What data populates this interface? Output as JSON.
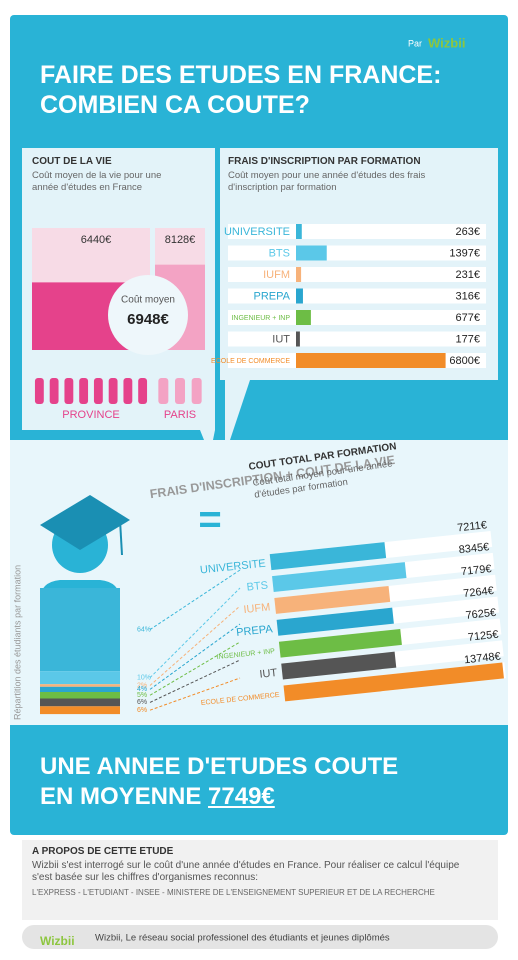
{
  "header": {
    "by": "Par",
    "brand": "Wizbii",
    "title_line1": "FAIRE DES ETUDES EN FRANCE:",
    "title_line2": "COMBIEN CA COUTE?"
  },
  "cost_of_living": {
    "title": "COUT DE LA VIE",
    "subtitle": "Coût moyen de la vie pour une année d'études en France",
    "regions": [
      {
        "name": "PROVINCE",
        "value": 6440,
        "label": "6440€"
      },
      {
        "name": "PARIS",
        "value": 8128,
        "label": "8128€"
      }
    ],
    "average": {
      "caption": "Coût moyen",
      "value": 6948,
      "label": "6948€"
    }
  },
  "tuition": {
    "title": "FRAIS D'INSCRIPTION PAR FORMATION",
    "subtitle": "Coût moyen pour une année d'études des frais d'inscription par formation",
    "items": [
      {
        "name": "UNIVERSITE",
        "value": 263,
        "label": "263€",
        "color": "#3ab6d9"
      },
      {
        "name": "BTS",
        "value": 1397,
        "label": "1397€",
        "color": "#5bc8e8"
      },
      {
        "name": "IUFM",
        "value": 231,
        "label": "231€",
        "color": "#f7b27a"
      },
      {
        "name": "PREPA",
        "value": 316,
        "label": "316€",
        "color": "#2aa6cf"
      },
      {
        "name": "INGENIEUR + INP",
        "value": 677,
        "label": "677€",
        "color": "#6dbd45"
      },
      {
        "name": "IUT",
        "value": 177,
        "label": "177€",
        "color": "#555555"
      },
      {
        "name": "ECOLE DE COMMERCE",
        "value": 6800,
        "label": "6800€",
        "color": "#f28c28"
      }
    ]
  },
  "combined": {
    "heading": "FRAIS D'INSCRIPTION + COUT DE LA VIE",
    "equals": "=",
    "title": "COUT TOTAL PAR FORMATION",
    "subtitle": "Coût total moyen pour une année d'études par formation",
    "axis_label": "Répartition des étudiants par formation",
    "items": [
      {
        "name": "UNIVERSITE",
        "value": 7211,
        "label": "7211€",
        "share": 64,
        "share_label": "64%"
      },
      {
        "name": "BTS",
        "value": 8345,
        "label": "8345€",
        "share": 10,
        "share_label": "10%"
      },
      {
        "name": "IUFM",
        "value": 7179,
        "label": "7179€",
        "share": 2,
        "share_label": "2%"
      },
      {
        "name": "PREPA",
        "value": 7264,
        "label": "7264€",
        "share": 4,
        "share_label": "4%"
      },
      {
        "name": "INGENIEUR + INP",
        "value": 7625,
        "label": "7625€",
        "share": 5,
        "share_label": "5%"
      },
      {
        "name": "IUT",
        "value": 7125,
        "label": "7125€",
        "share": 6,
        "share_label": "6%"
      },
      {
        "name": "ECOLE DE COMMERCE",
        "value": 13748,
        "label": "13748€",
        "share": 6,
        "share_label": "6%"
      }
    ]
  },
  "conclusion": {
    "line1": "UNE ANNEE D'ETUDES COUTE",
    "line2": "EN MOYENNE",
    "value": 7749,
    "label": "7749€"
  },
  "about": {
    "title": "A PROPOS DE CETTE ETUDE",
    "text": "Wizbii s'est interrogé sur le coût d'une année d'études en France. Pour réaliser ce calcul l'équipe s'est basée sur les chiffres d'organismes reconnus:",
    "sources": "L'EXPRESS - L'ETUDIANT - INSEE - MINISTERE DE L'ENSEIGNEMENT SUPERIEUR ET DE LA RECHERCHE"
  },
  "footer": {
    "brand": "Wizbii",
    "tagline": "Wizbii, Le réseau social professionel des étudiants et jeunes diplômés"
  }
}
